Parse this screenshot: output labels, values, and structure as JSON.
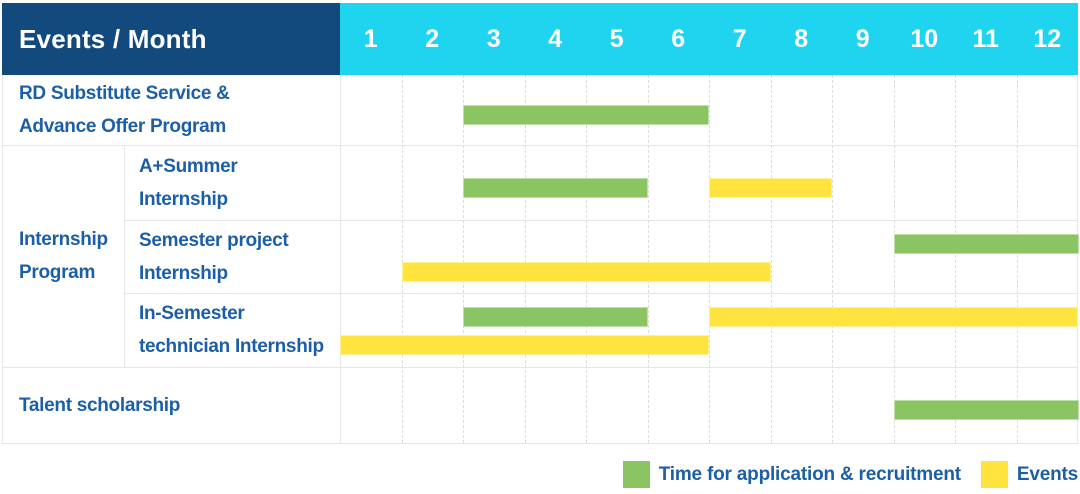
{
  "header": {
    "title": "Events / Month",
    "months": [
      "1",
      "2",
      "3",
      "4",
      "5",
      "6",
      "7",
      "8",
      "9",
      "10",
      "11",
      "12"
    ]
  },
  "colors": {
    "header_bg": "#134A7D",
    "months_bg": "#1ED4EF",
    "label_text": "#1C5FA6",
    "recruitment": "#8BC563",
    "event": "#FFE33E",
    "grid_line": "#E6E6E8",
    "grid_dash": "#DCDCDE"
  },
  "legend": [
    {
      "key": "recruitment",
      "label": "Time for application & recruitment"
    },
    {
      "key": "event",
      "label": "Events"
    }
  ],
  "chart_data": {
    "type": "gantt",
    "title": "Events / Month",
    "x_axis": {
      "label": "Month",
      "ticks": [
        1,
        2,
        3,
        4,
        5,
        6,
        7,
        8,
        9,
        10,
        11,
        12
      ],
      "range": [
        1,
        12
      ]
    },
    "legend_position": "bottom-right",
    "groups": [
      {
        "label": "Internship Program",
        "label_lines": [
          "Internship",
          "Program"
        ],
        "row_indexes": [
          1,
          2,
          3
        ]
      }
    ],
    "rows": [
      {
        "label": "RD Substitute Service & Advance Offer Program",
        "label_lines": [
          "RD Substitute Service &",
          "Advance Offer Program"
        ],
        "group": null,
        "bars": [
          {
            "series": "recruitment",
            "start_month": 3,
            "end_month": 6,
            "track": "single"
          }
        ]
      },
      {
        "label": "A+Summer Internship",
        "label_lines": [
          "A+Summer",
          "Internship"
        ],
        "group": "Internship Program",
        "bars": [
          {
            "series": "recruitment",
            "start_month": 3,
            "end_month": 5,
            "track": "single"
          },
          {
            "series": "event",
            "start_month": 7,
            "end_month": 8,
            "track": "single"
          }
        ]
      },
      {
        "label": "Semester project Internship",
        "label_lines": [
          "Semester project",
          "Internship"
        ],
        "group": "Internship Program",
        "bars": [
          {
            "series": "recruitment",
            "start_month": 10,
            "end_month": 12,
            "track": "top"
          },
          {
            "series": "event",
            "start_month": 2,
            "end_month": 7,
            "track": "bottom"
          }
        ]
      },
      {
        "label": "In-Semester technician Internship",
        "label_lines": [
          "In-Semester",
          "technician Internship"
        ],
        "group": "Internship Program",
        "bars": [
          {
            "series": "recruitment",
            "start_month": 3,
            "end_month": 5,
            "track": "top"
          },
          {
            "series": "event",
            "start_month": 7,
            "end_month": 12,
            "track": "top"
          },
          {
            "series": "event",
            "start_month": 1,
            "end_month": 6,
            "track": "bottom"
          }
        ]
      },
      {
        "label": "Talent scholarship",
        "label_lines": [
          "Talent scholarship"
        ],
        "group": null,
        "bars": [
          {
            "series": "recruitment",
            "start_month": 10,
            "end_month": 12,
            "track": "single"
          }
        ]
      }
    ]
  }
}
